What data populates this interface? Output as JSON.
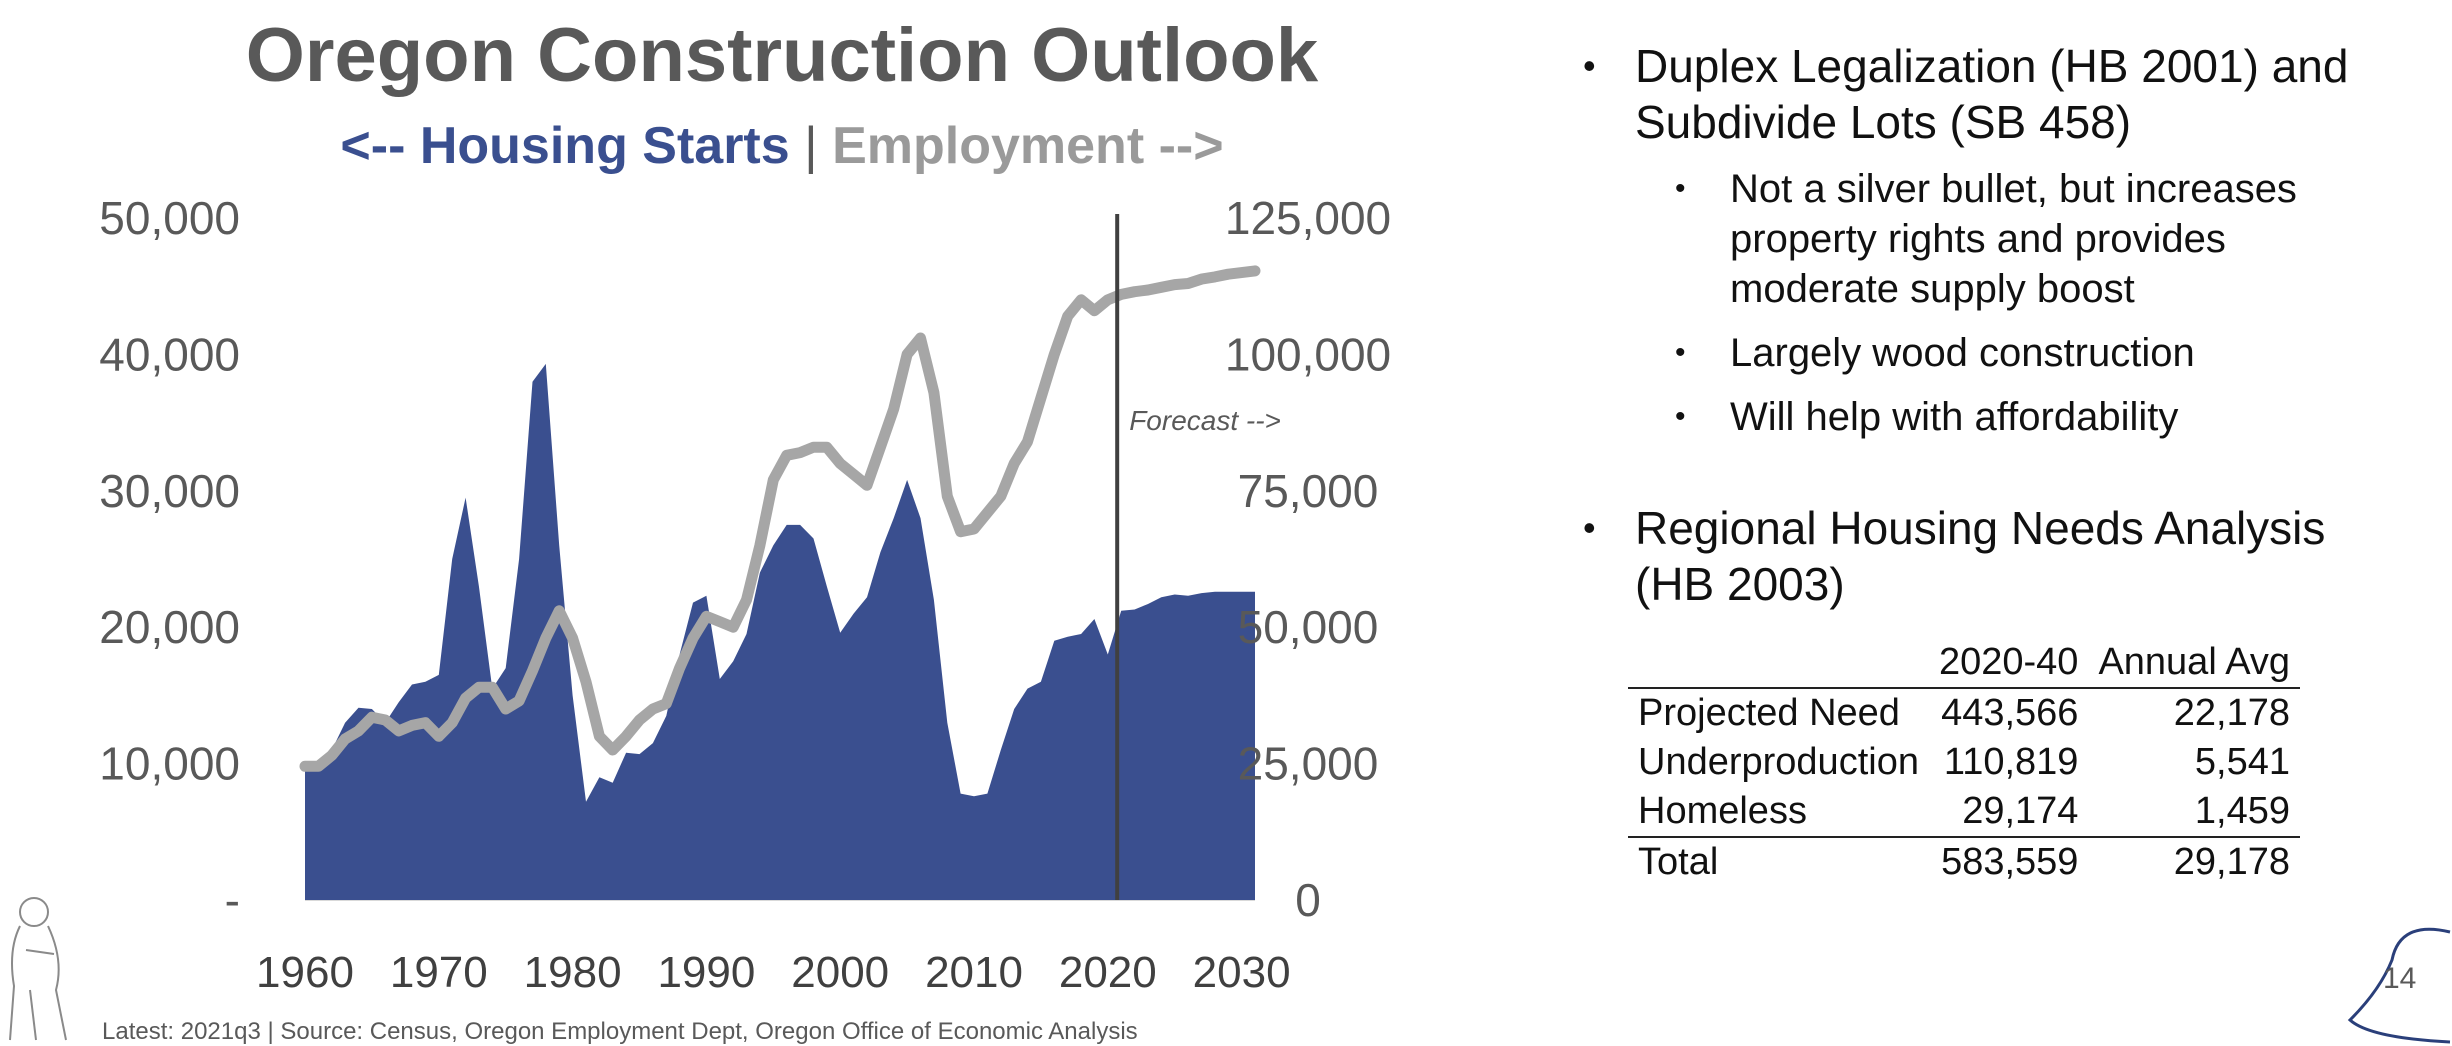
{
  "slide": {
    "title": "Oregon Construction Outlook",
    "subtitle_left": "<-- Housing Starts",
    "subtitle_separator": " | ",
    "subtitle_right": "Employment -->",
    "source": "Latest: 2021q3 | Source: Census, Oregon Employment Dept, Oregon Office of Economic Analysis",
    "page_number": "14",
    "colors": {
      "starts": "#3a4f8f",
      "employment": "#a6a6a6",
      "forecast_line": "#404040",
      "text": "#595959"
    }
  },
  "chart_data": {
    "type": "area",
    "title": "Oregon Construction Outlook",
    "x_ticks": [
      "1960",
      "1970",
      "1980",
      "1990",
      "2000",
      "2010",
      "2020",
      "2030"
    ],
    "left_axis": {
      "range": [
        0,
        50000
      ],
      "tick_labels": [
        "-",
        "10,000",
        "20,000",
        "30,000",
        "40,000",
        "50,000"
      ]
    },
    "right_axis": {
      "range": [
        0,
        125000
      ],
      "tick_labels": [
        "0",
        "25,000",
        "50,000",
        "75,000",
        "100,000",
        "125,000"
      ]
    },
    "forecast_start_year": 2021,
    "forecast_label": "Forecast -->",
    "series": [
      {
        "name": "Housing Starts",
        "axis": "left",
        "type": "area",
        "x": [
          1960,
          1961,
          1962,
          1963,
          1964,
          1965,
          1966,
          1967,
          1968,
          1969,
          1970,
          1971,
          1972,
          1973,
          1974,
          1975,
          1976,
          1977,
          1978,
          1979,
          1980,
          1981,
          1982,
          1983,
          1984,
          1985,
          1986,
          1987,
          1988,
          1989,
          1990,
          1991,
          1992,
          1993,
          1994,
          1995,
          1996,
          1997,
          1998,
          1999,
          2000,
          2001,
          2002,
          2003,
          2004,
          2005,
          2006,
          2007,
          2008,
          2009,
          2010,
          2011,
          2012,
          2013,
          2014,
          2015,
          2016,
          2017,
          2018,
          2019,
          2020,
          2021,
          2022,
          2023,
          2024,
          2025,
          2026,
          2027,
          2028,
          2029,
          2030,
          2031
        ],
        "values": [
          9700,
          9800,
          11000,
          13000,
          14100,
          14000,
          13000,
          14500,
          15800,
          16000,
          16500,
          25000,
          29500,
          23000,
          15500,
          17000,
          25000,
          38000,
          39300,
          26000,
          15000,
          7200,
          9000,
          8600,
          10800,
          10700,
          11500,
          13500,
          18000,
          21800,
          22300,
          16200,
          17500,
          19500,
          24000,
          26000,
          27500,
          27500,
          26500,
          23000,
          19600,
          21000,
          22200,
          25500,
          28000,
          30800,
          28000,
          22000,
          13000,
          7800,
          7600,
          7800,
          11000,
          14000,
          15500,
          16000,
          19000,
          19300,
          19500,
          20600,
          18000,
          21200,
          21300,
          21700,
          22200,
          22400,
          22300,
          22500,
          22600,
          22600,
          22600,
          22600
        ]
      },
      {
        "name": "Employment",
        "axis": "right",
        "type": "line",
        "x": [
          1960,
          1961,
          1962,
          1963,
          1964,
          1965,
          1966,
          1967,
          1968,
          1969,
          1970,
          1971,
          1972,
          1973,
          1974,
          1975,
          1976,
          1977,
          1978,
          1979,
          1980,
          1981,
          1982,
          1983,
          1984,
          1985,
          1986,
          1987,
          1988,
          1989,
          1990,
          1991,
          1992,
          1993,
          1994,
          1995,
          1996,
          1997,
          1998,
          1999,
          2000,
          2001,
          2002,
          2003,
          2004,
          2005,
          2006,
          2007,
          2008,
          2009,
          2010,
          2011,
          2012,
          2013,
          2014,
          2015,
          2016,
          2017,
          2018,
          2019,
          2020,
          2021,
          2022,
          2023,
          2024,
          2025,
          2026,
          2027,
          2028,
          2029,
          2030,
          2031
        ],
        "values": [
          24500,
          24500,
          26500,
          29500,
          31000,
          33500,
          33000,
          31000,
          32000,
          32500,
          30000,
          32500,
          37000,
          39000,
          39000,
          35000,
          36500,
          42000,
          48000,
          53000,
          48000,
          40000,
          30000,
          27500,
          30000,
          33000,
          35000,
          36000,
          42500,
          48000,
          52000,
          51000,
          50000,
          55000,
          65000,
          77000,
          81500,
          82000,
          83000,
          83000,
          80000,
          78000,
          76000,
          83000,
          90000,
          100000,
          103000,
          93000,
          74000,
          67500,
          68000,
          71000,
          74000,
          80000,
          84000,
          92000,
          100000,
          107000,
          110000,
          108000,
          110000,
          111000,
          111500,
          111800,
          112300,
          112800,
          113000,
          113800,
          114200,
          114700,
          115000,
          115300
        ]
      }
    ]
  },
  "panel": {
    "bullet1": {
      "lines": [
        "Duplex Legalization (HB 2001) and",
        "Subdivide Lots (SB 458)"
      ],
      "sub_items": [
        {
          "lines": [
            "Not a silver bullet, but increases",
            "property rights and provides",
            "moderate supply boost"
          ]
        },
        {
          "lines": [
            "Largely wood construction"
          ]
        },
        {
          "lines": [
            "Will help with affordability"
          ]
        }
      ]
    },
    "bullet2": {
      "lines": [
        "Regional Housing Needs Analysis",
        "(HB 2003)"
      ]
    },
    "table": {
      "headers": [
        "",
        "2020-40",
        "Annual Avg"
      ],
      "rows": [
        [
          "Projected Need",
          "443,566",
          "22,178"
        ],
        [
          "Underproduction",
          "110,819",
          "5,541"
        ],
        [
          "Homeless",
          "29,174",
          "1,459"
        ]
      ],
      "total": [
        "Total",
        "583,559",
        "29,178"
      ]
    }
  }
}
